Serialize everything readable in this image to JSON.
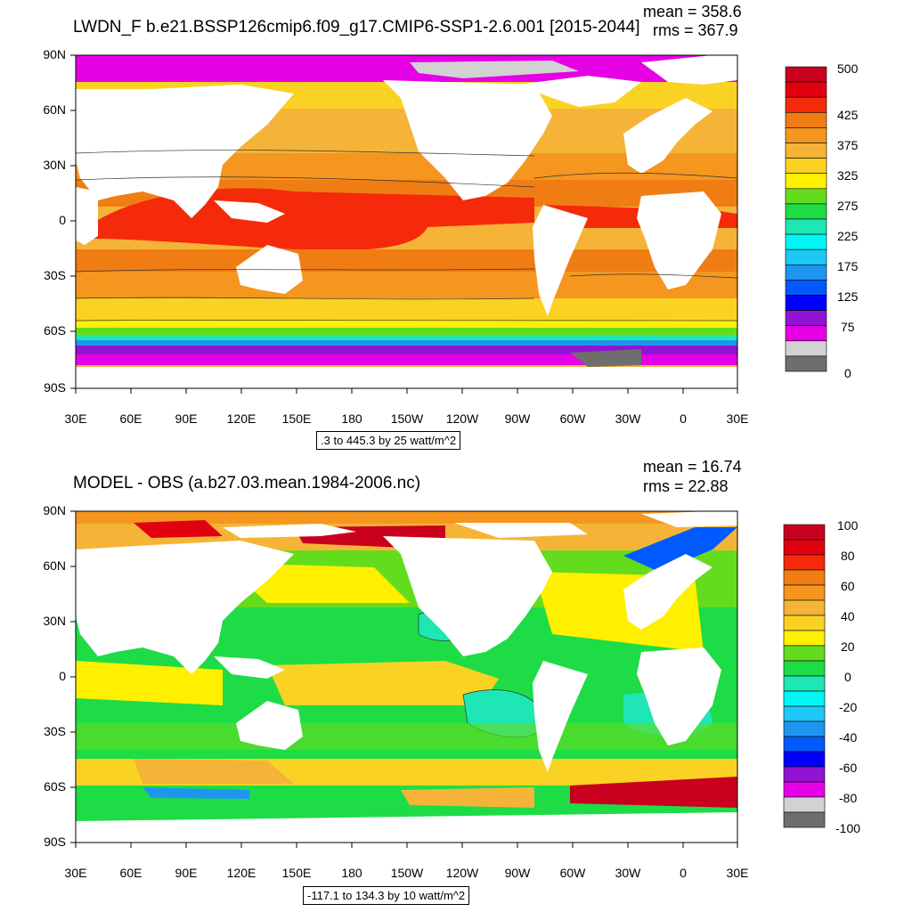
{
  "top_panel": {
    "title": "LWDN_F b.e21.BSSP126cmip6.f09_g17.CMIP6-SSP1-2.6.001 [2015-2044]",
    "mean": "mean = 358.6",
    "rms": "rms = 367.9",
    "info": ".3 to 445.3 by 25 watt/m^2",
    "colorbar_labels": [
      "500",
      "425",
      "375",
      "325",
      "275",
      "225",
      "175",
      "125",
      "75",
      "0"
    ],
    "colorbar_colors": [
      "#c8001e",
      "#e10010",
      "#f52a0a",
      "#f07d14",
      "#f5961e",
      "#f5b437",
      "#fad223",
      "#fff000",
      "#64dc1e",
      "#1edc46",
      "#1ee6b4",
      "#00f5f5",
      "#1ec8f5",
      "#1e96f0",
      "#005aff",
      "#0000ff",
      "#9114d2",
      "#e600e6",
      "#d2d2d2",
      "#6e6e6e"
    ]
  },
  "bottom_panel": {
    "title": "MODEL - OBS (a.b27.03.mean.1984-2006.nc)",
    "mean": "mean = 16.74",
    "rms": "rms = 22.88",
    "info": "-117.1 to 134.3 by 10 watt/m^2",
    "colorbar_labels": [
      "100",
      "80",
      "60",
      "40",
      "20",
      "0",
      "-20",
      "-40",
      "-60",
      "-80",
      "-100"
    ],
    "colorbar_colors": [
      "#c8001e",
      "#e10010",
      "#f52a0a",
      "#f07d14",
      "#f5961e",
      "#f5b437",
      "#fad223",
      "#fff000",
      "#64dc1e",
      "#1edc46",
      "#1ee6b4",
      "#00f5f5",
      "#1ec8f5",
      "#1e96f0",
      "#005aff",
      "#0000ff",
      "#9114d2",
      "#e600e6",
      "#d2d2d2",
      "#6e6e6e"
    ]
  },
  "axes": {
    "lat_ticks": [
      "90N",
      "60N",
      "30N",
      "0",
      "30S",
      "60S",
      "90S"
    ],
    "lon_ticks": [
      "30E",
      "60E",
      "90E",
      "120E",
      "150E",
      "180",
      "150W",
      "120W",
      "90W",
      "60W",
      "30W",
      "0",
      "30E"
    ]
  },
  "colors": {
    "land": "#ffffff",
    "sea_ice": "#d2d2d2"
  }
}
